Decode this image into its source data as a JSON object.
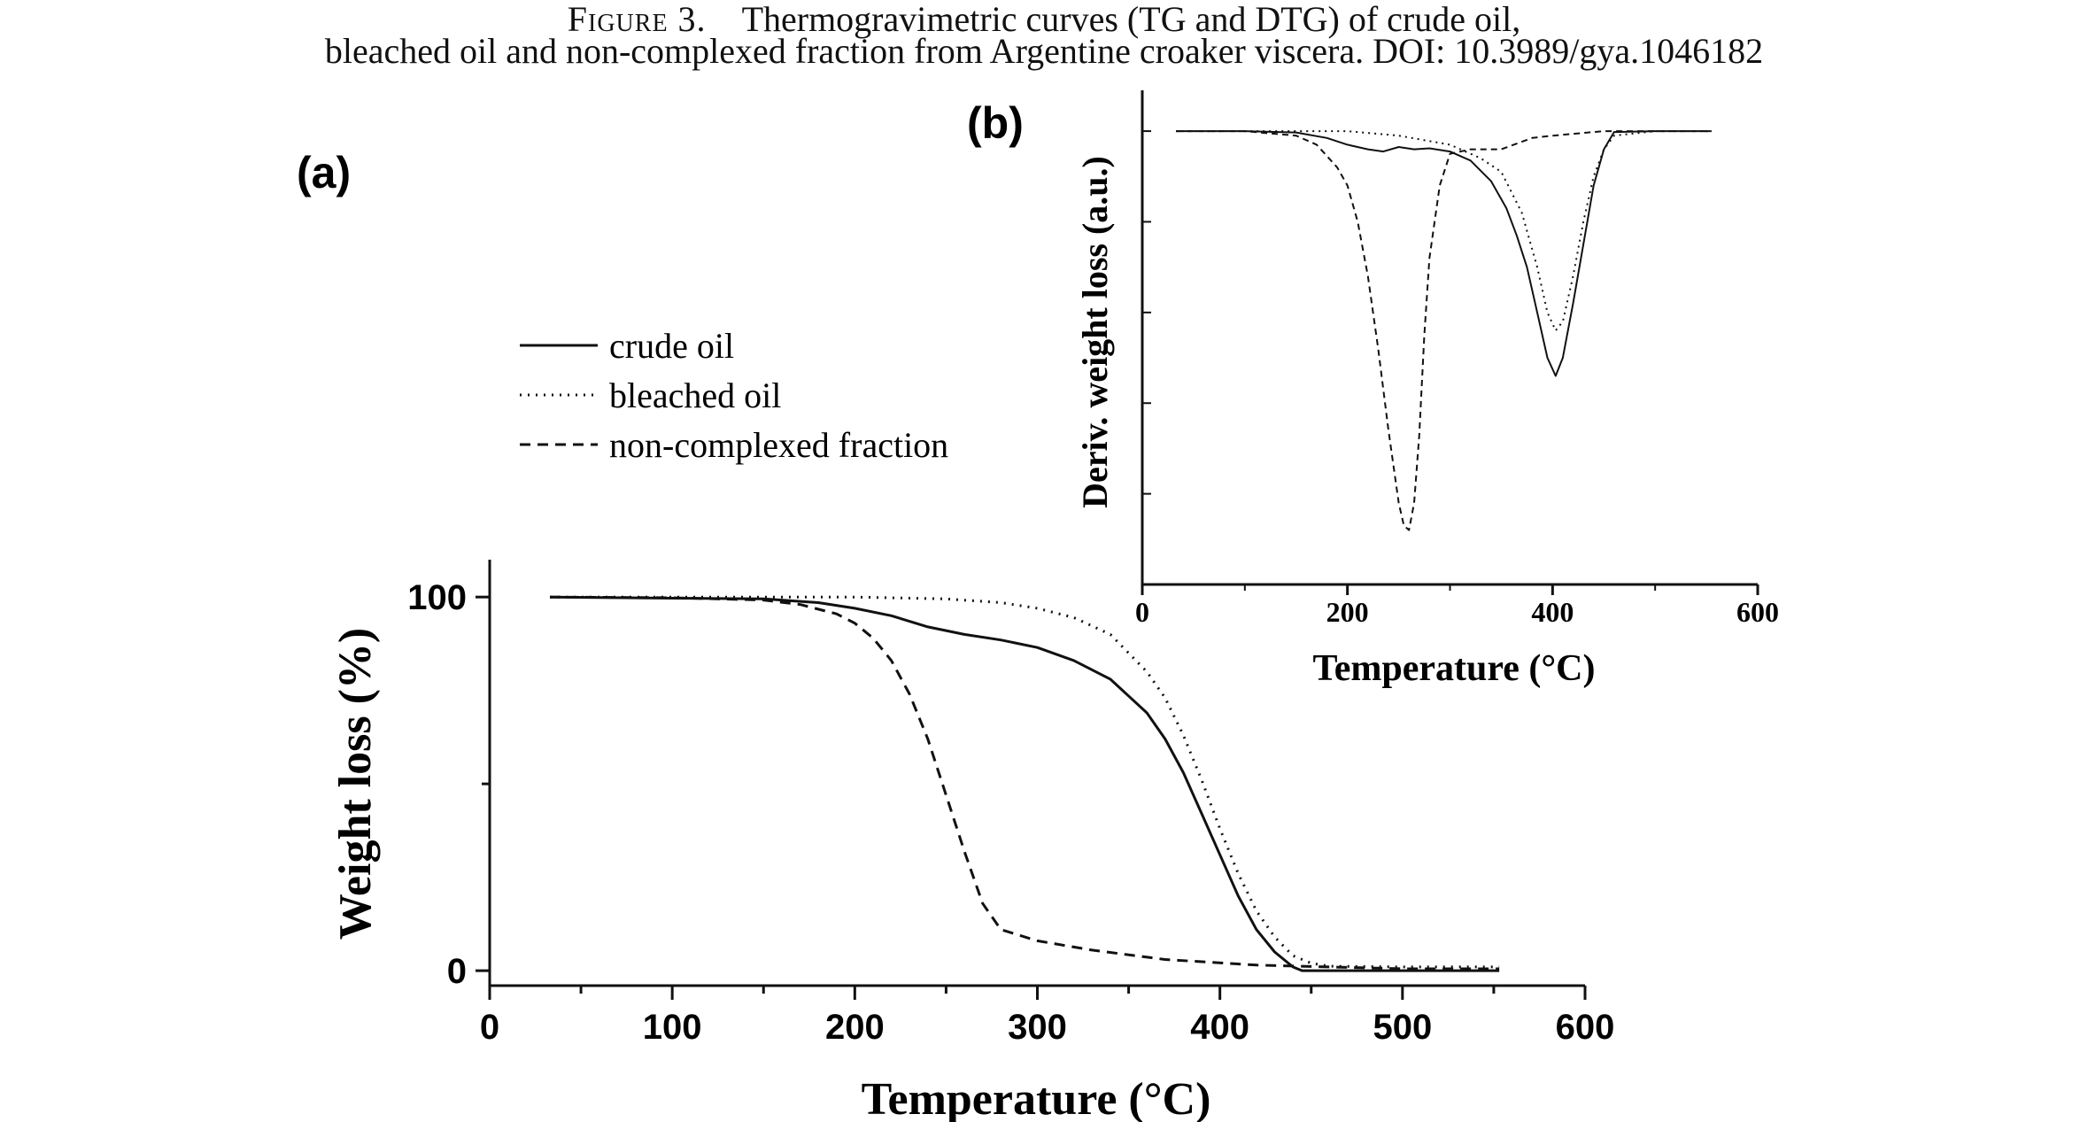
{
  "figure": {
    "caption_label": "Figure 3.",
    "caption_line1": "Thermogravimetric curves (TG and DTG) of crude oil,",
    "caption_line2": "bleached oil and non-complexed fraction from Argentine croaker viscera. DOI: 10.3989/gya.1046182"
  },
  "chart_data": [
    {
      "panel": "(a)",
      "type": "line",
      "title": "",
      "xlabel": "Temperature (°C)",
      "ylabel": "Weight loss (%)",
      "xlim": [
        0,
        600
      ],
      "ylim": [
        -4,
        110
      ],
      "xticks": [
        0,
        100,
        200,
        300,
        400,
        500,
        600
      ],
      "yticks": [
        0,
        100
      ],
      "grid": false,
      "legend_position": "upper-left",
      "series": [
        {
          "name": "crude oil",
          "style": "solid",
          "x": [
            33,
            100,
            150,
            180,
            200,
            220,
            240,
            260,
            280,
            300,
            320,
            340,
            360,
            370,
            380,
            390,
            400,
            410,
            420,
            430,
            440,
            445,
            450,
            500,
            553
          ],
          "y": [
            100,
            99.7,
            99.5,
            98.5,
            97,
            95,
            92,
            90,
            88.5,
            86.5,
            83,
            78,
            69,
            62,
            53,
            42,
            31,
            20,
            11,
            5,
            1,
            0,
            0,
            0,
            0
          ]
        },
        {
          "name": "bleached oil",
          "style": "dotted",
          "x": [
            33,
            100,
            200,
            250,
            280,
            300,
            320,
            340,
            360,
            370,
            380,
            390,
            400,
            410,
            420,
            430,
            440,
            450,
            460,
            500,
            553
          ],
          "y": [
            100,
            100,
            100,
            99.5,
            98.5,
            97,
            94.5,
            90,
            80,
            73,
            63,
            51,
            38,
            26,
            16,
            9,
            4,
            2,
            1.2,
            1,
            1
          ]
        },
        {
          "name": "non-complexed fraction",
          "style": "dashed",
          "x": [
            33,
            100,
            150,
            170,
            190,
            200,
            210,
            220,
            230,
            240,
            250,
            260,
            270,
            280,
            300,
            330,
            370,
            420,
            500,
            553
          ],
          "y": [
            100,
            99.8,
            99.2,
            98,
            95.5,
            93,
            89,
            83,
            74,
            62,
            47,
            32,
            18,
            11,
            8,
            5.5,
            3,
            1.5,
            0.5,
            0.5
          ]
        }
      ]
    },
    {
      "panel": "(b)",
      "type": "line",
      "title": "",
      "xlabel": "Temperature (°C)",
      "ylabel": "Deriv. weight loss (a.u.)",
      "xlim": [
        0,
        600
      ],
      "ylim": [
        0,
        1.09
      ],
      "xticks": [
        0,
        200,
        400,
        600
      ],
      "yticks_unlabeled": [
        0.2,
        0.4,
        0.6,
        0.8,
        1.0
      ],
      "grid": false,
      "series": [
        {
          "name": "crude oil",
          "style": "solid",
          "x": [
            33,
            100,
            150,
            180,
            200,
            220,
            235,
            250,
            265,
            280,
            300,
            320,
            340,
            355,
            365,
            375,
            385,
            395,
            403,
            410,
            420,
            430,
            440,
            450,
            460,
            500,
            555
          ],
          "y": [
            1.0,
            1.0,
            0.997,
            0.985,
            0.97,
            0.96,
            0.955,
            0.965,
            0.96,
            0.962,
            0.955,
            0.935,
            0.89,
            0.83,
            0.77,
            0.7,
            0.6,
            0.5,
            0.46,
            0.5,
            0.62,
            0.75,
            0.88,
            0.96,
            0.998,
            1.0,
            1.0
          ]
        },
        {
          "name": "bleached oil",
          "style": "dotted",
          "x": [
            33,
            100,
            200,
            250,
            300,
            330,
            350,
            370,
            385,
            395,
            403,
            410,
            420,
            430,
            440,
            450,
            460,
            500,
            555
          ],
          "y": [
            1.0,
            1.0,
            1.0,
            0.99,
            0.97,
            0.94,
            0.91,
            0.82,
            0.7,
            0.6,
            0.56,
            0.58,
            0.68,
            0.8,
            0.9,
            0.96,
            0.99,
            1.0,
            1.0
          ]
        },
        {
          "name": "non-complexed fraction",
          "style": "dashed",
          "x": [
            33,
            100,
            150,
            170,
            190,
            200,
            210,
            220,
            230,
            240,
            250,
            255,
            260,
            265,
            270,
            275,
            280,
            290,
            300,
            320,
            350,
            380,
            400,
            450,
            500,
            555
          ],
          "y": [
            1.0,
            1.0,
            0.99,
            0.97,
            0.92,
            0.88,
            0.8,
            0.68,
            0.52,
            0.34,
            0.18,
            0.13,
            0.12,
            0.18,
            0.33,
            0.55,
            0.72,
            0.88,
            0.95,
            0.96,
            0.96,
            0.985,
            0.99,
            1.0,
            1.0,
            1.0
          ]
        }
      ]
    }
  ]
}
